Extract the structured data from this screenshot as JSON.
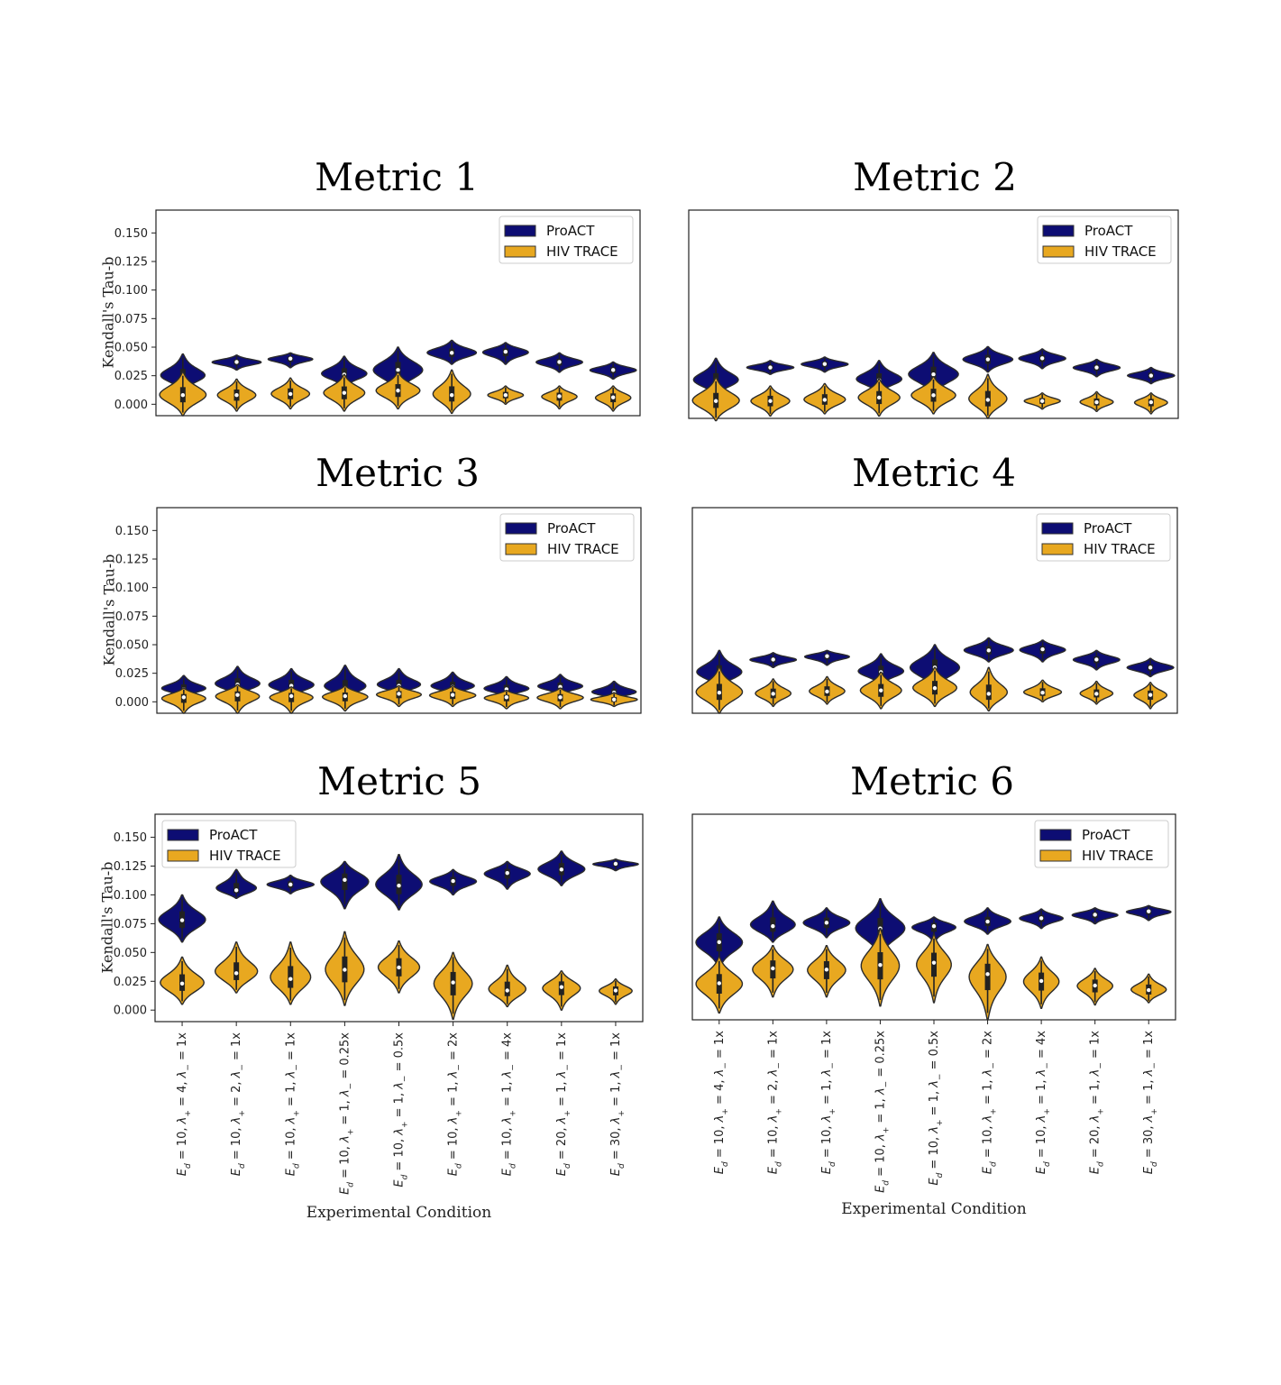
{
  "colors": {
    "proact": "#0d0d73",
    "hiv": "#e8a820",
    "stroke": "#2b2b2b"
  },
  "common": {
    "ylabel": "Kendall's Tau-b",
    "xlabel": "Experimental Condition",
    "legend": [
      "ProACT",
      "HIV TRACE"
    ],
    "yticks": [
      "0.150",
      "0.125",
      "0.100",
      "0.075",
      "0.050",
      "0.025",
      "0.000"
    ]
  },
  "chart_data": [
    {
      "type": "violin",
      "title": "Metric 1",
      "ylim": [
        -0.01,
        0.17
      ],
      "legend_position": "top-right",
      "series": [
        {
          "name": "ProACT",
          "median": [
            0.024,
            0.037,
            0.04,
            0.026,
            0.03,
            0.045,
            0.046,
            0.037,
            0.03
          ],
          "min": [
            0.012,
            0.03,
            0.032,
            0.015,
            0.01,
            0.035,
            0.035,
            0.028,
            0.022
          ],
          "max": [
            0.044,
            0.043,
            0.045,
            0.042,
            0.05,
            0.056,
            0.054,
            0.045,
            0.037
          ],
          "width": [
            0.85,
            0.9,
            0.85,
            0.85,
            0.9,
            0.9,
            0.85,
            0.85,
            0.85
          ]
        },
        {
          "name": "HIV TRACE",
          "median": [
            0.008,
            0.008,
            0.009,
            0.01,
            0.012,
            0.008,
            0.008,
            0.007,
            0.006
          ],
          "min": [
            -0.01,
            -0.006,
            -0.004,
            -0.006,
            -0.004,
            -0.008,
            0.0,
            -0.004,
            -0.006
          ],
          "max": [
            0.028,
            0.022,
            0.023,
            0.026,
            0.028,
            0.03,
            0.016,
            0.016,
            0.016
          ],
          "width": [
            0.85,
            0.7,
            0.7,
            0.75,
            0.8,
            0.7,
            0.65,
            0.65,
            0.65
          ]
        }
      ]
    },
    {
      "type": "violin",
      "title": "Metric 2",
      "ylim": [
        -0.01,
        0.17
      ],
      "legend_position": "top-right",
      "series": [
        {
          "name": "ProACT",
          "median": [
            0.022,
            0.034,
            0.037,
            0.023,
            0.028,
            0.041,
            0.042,
            0.034,
            0.027
          ],
          "min": [
            0.01,
            0.028,
            0.03,
            0.012,
            0.01,
            0.03,
            0.033,
            0.026,
            0.02
          ],
          "max": [
            0.042,
            0.04,
            0.043,
            0.04,
            0.047,
            0.052,
            0.05,
            0.041,
            0.034
          ],
          "width": [
            0.85,
            0.85,
            0.85,
            0.85,
            0.9,
            0.9,
            0.85,
            0.85,
            0.85
          ]
        },
        {
          "name": "HIV TRACE",
          "median": [
            0.005,
            0.005,
            0.006,
            0.008,
            0.01,
            0.006,
            0.005,
            0.004,
            0.004
          ],
          "min": [
            -0.012,
            -0.008,
            -0.006,
            -0.008,
            -0.006,
            -0.01,
            -0.002,
            -0.004,
            -0.006
          ],
          "max": [
            0.025,
            0.018,
            0.02,
            0.024,
            0.026,
            0.028,
            0.012,
            0.013,
            0.012
          ],
          "width": [
            0.85,
            0.7,
            0.75,
            0.75,
            0.8,
            0.7,
            0.65,
            0.6,
            0.6
          ]
        }
      ]
    },
    {
      "type": "violin",
      "title": "Metric 3",
      "ylim": [
        -0.01,
        0.17
      ],
      "legend_position": "top-right",
      "series": [
        {
          "name": "ProACT",
          "median": [
            0.011,
            0.015,
            0.014,
            0.012,
            0.014,
            0.013,
            0.011,
            0.013,
            0.008
          ],
          "min": [
            0.004,
            0.005,
            0.004,
            0.003,
            0.006,
            0.006,
            0.004,
            0.006,
            0.002
          ],
          "max": [
            0.023,
            0.031,
            0.029,
            0.032,
            0.029,
            0.026,
            0.022,
            0.024,
            0.018
          ],
          "width": [
            0.85,
            0.85,
            0.85,
            0.85,
            0.85,
            0.85,
            0.85,
            0.85,
            0.85
          ]
        },
        {
          "name": "HIV TRACE",
          "median": [
            0.004,
            0.006,
            0.005,
            0.005,
            0.007,
            0.006,
            0.004,
            0.004,
            0.002
          ],
          "min": [
            -0.01,
            -0.01,
            -0.01,
            -0.008,
            -0.004,
            -0.004,
            -0.006,
            -0.006,
            -0.004
          ],
          "max": [
            0.012,
            0.015,
            0.013,
            0.014,
            0.014,
            0.014,
            0.01,
            0.012,
            0.008
          ],
          "width": [
            0.85,
            0.85,
            0.85,
            0.85,
            0.85,
            0.85,
            0.85,
            0.85,
            0.85
          ]
        }
      ]
    },
    {
      "type": "violin",
      "title": "Metric 4",
      "ylim": [
        -0.01,
        0.17
      ],
      "legend_position": "top-right",
      "series": [
        {
          "name": "ProACT",
          "median": [
            0.025,
            0.037,
            0.04,
            0.026,
            0.03,
            0.045,
            0.046,
            0.037,
            0.03
          ],
          "min": [
            0.012,
            0.03,
            0.032,
            0.015,
            0.01,
            0.035,
            0.035,
            0.028,
            0.022
          ],
          "max": [
            0.045,
            0.043,
            0.045,
            0.042,
            0.05,
            0.056,
            0.054,
            0.045,
            0.038
          ],
          "width": [
            0.85,
            0.85,
            0.85,
            0.85,
            0.9,
            0.9,
            0.85,
            0.85,
            0.85
          ]
        },
        {
          "name": "HIV TRACE",
          "median": [
            0.008,
            0.007,
            0.009,
            0.01,
            0.012,
            0.007,
            0.008,
            0.007,
            0.006
          ],
          "min": [
            -0.01,
            -0.004,
            -0.002,
            -0.006,
            -0.004,
            -0.008,
            0.0,
            -0.002,
            -0.006
          ],
          "max": [
            0.03,
            0.02,
            0.022,
            0.026,
            0.03,
            0.03,
            0.019,
            0.018,
            0.017
          ],
          "width": [
            0.85,
            0.65,
            0.65,
            0.75,
            0.8,
            0.7,
            0.7,
            0.6,
            0.6
          ]
        }
      ]
    },
    {
      "type": "violin",
      "title": "Metric 5",
      "ylim": [
        -0.01,
        0.17
      ],
      "legend_position": "top-left",
      "series": [
        {
          "name": "ProACT",
          "median": [
            0.078,
            0.104,
            0.109,
            0.113,
            0.108,
            0.112,
            0.119,
            0.122,
            0.127
          ],
          "min": [
            0.059,
            0.097,
            0.101,
            0.088,
            0.087,
            0.1,
            0.105,
            0.108,
            0.121
          ],
          "max": [
            0.1,
            0.122,
            0.117,
            0.129,
            0.135,
            0.122,
            0.129,
            0.138,
            0.131
          ],
          "width": [
            0.85,
            0.85,
            0.85,
            0.9,
            0.85,
            0.85,
            0.85,
            0.85,
            0.85
          ]
        },
        {
          "name": "HIV TRACE",
          "median": [
            0.023,
            0.032,
            0.027,
            0.035,
            0.037,
            0.024,
            0.017,
            0.02,
            0.017
          ],
          "min": [
            0.005,
            0.015,
            0.005,
            0.004,
            0.015,
            -0.008,
            0.003,
            0.0,
            0.005
          ],
          "max": [
            0.046,
            0.059,
            0.059,
            0.068,
            0.06,
            0.05,
            0.039,
            0.034,
            0.027
          ],
          "width": [
            0.8,
            0.8,
            0.75,
            0.7,
            0.75,
            0.7,
            0.7,
            0.7,
            0.6
          ]
        }
      ]
    },
    {
      "type": "violin",
      "title": "Metric 6",
      "ylim": [
        -0.01,
        0.17
      ],
      "legend_position": "top-right",
      "series": [
        {
          "name": "ProACT",
          "median": [
            0.058,
            0.072,
            0.075,
            0.07,
            0.072,
            0.076,
            0.079,
            0.082,
            0.085
          ],
          "min": [
            0.035,
            0.058,
            0.062,
            0.045,
            0.058,
            0.065,
            0.07,
            0.074,
            0.077
          ],
          "max": [
            0.08,
            0.094,
            0.088,
            0.096,
            0.08,
            0.088,
            0.087,
            0.088,
            0.09
          ],
          "width": [
            0.85,
            0.85,
            0.85,
            0.9,
            0.85,
            0.85,
            0.8,
            0.85,
            0.85
          ]
        },
        {
          "name": "HIV TRACE",
          "median": [
            0.022,
            0.035,
            0.034,
            0.038,
            0.04,
            0.03,
            0.024,
            0.02,
            0.016
          ],
          "min": [
            -0.004,
            0.01,
            0.01,
            0.002,
            0.005,
            -0.01,
            0.0,
            0.003,
            0.005
          ],
          "max": [
            0.045,
            0.055,
            0.055,
            0.07,
            0.065,
            0.056,
            0.045,
            0.035,
            0.03
          ],
          "width": [
            0.85,
            0.75,
            0.7,
            0.7,
            0.65,
            0.7,
            0.65,
            0.65,
            0.65
          ]
        }
      ]
    }
  ],
  "xtick_labels": [
    "E_d=10, λ₊=4, λ₋=1x",
    "E_d=10, λ₊=2, λ₋=1x",
    "E_d=10, λ₊=1, λ₋=1x",
    "E_d=10, λ₊=1, λ₋=0.25x",
    "E_d=10, λ₊=1, λ₋=0.5x",
    "E_d=10, λ₊=1, λ₋=2x",
    "E_d=10, λ₊=1, λ₋=4x",
    "E_d=20, λ₊=1, λ₋=1x",
    "E_d=30, λ₊=1, λ₋=1x"
  ],
  "xtick_parts": [
    {
      "ed": "10",
      "lp": "4",
      "lm": "1x"
    },
    {
      "ed": "10",
      "lp": "2",
      "lm": "1x"
    },
    {
      "ed": "10",
      "lp": "1",
      "lm": "1x"
    },
    {
      "ed": "10",
      "lp": "1",
      "lm": "0.25x"
    },
    {
      "ed": "10",
      "lp": "1",
      "lm": "0.5x"
    },
    {
      "ed": "10",
      "lp": "1",
      "lm": "2x"
    },
    {
      "ed": "10",
      "lp": "1",
      "lm": "4x"
    },
    {
      "ed": "20",
      "lp": "1",
      "lm": "1x"
    },
    {
      "ed": "30",
      "lp": "1",
      "lm": "1x"
    }
  ]
}
